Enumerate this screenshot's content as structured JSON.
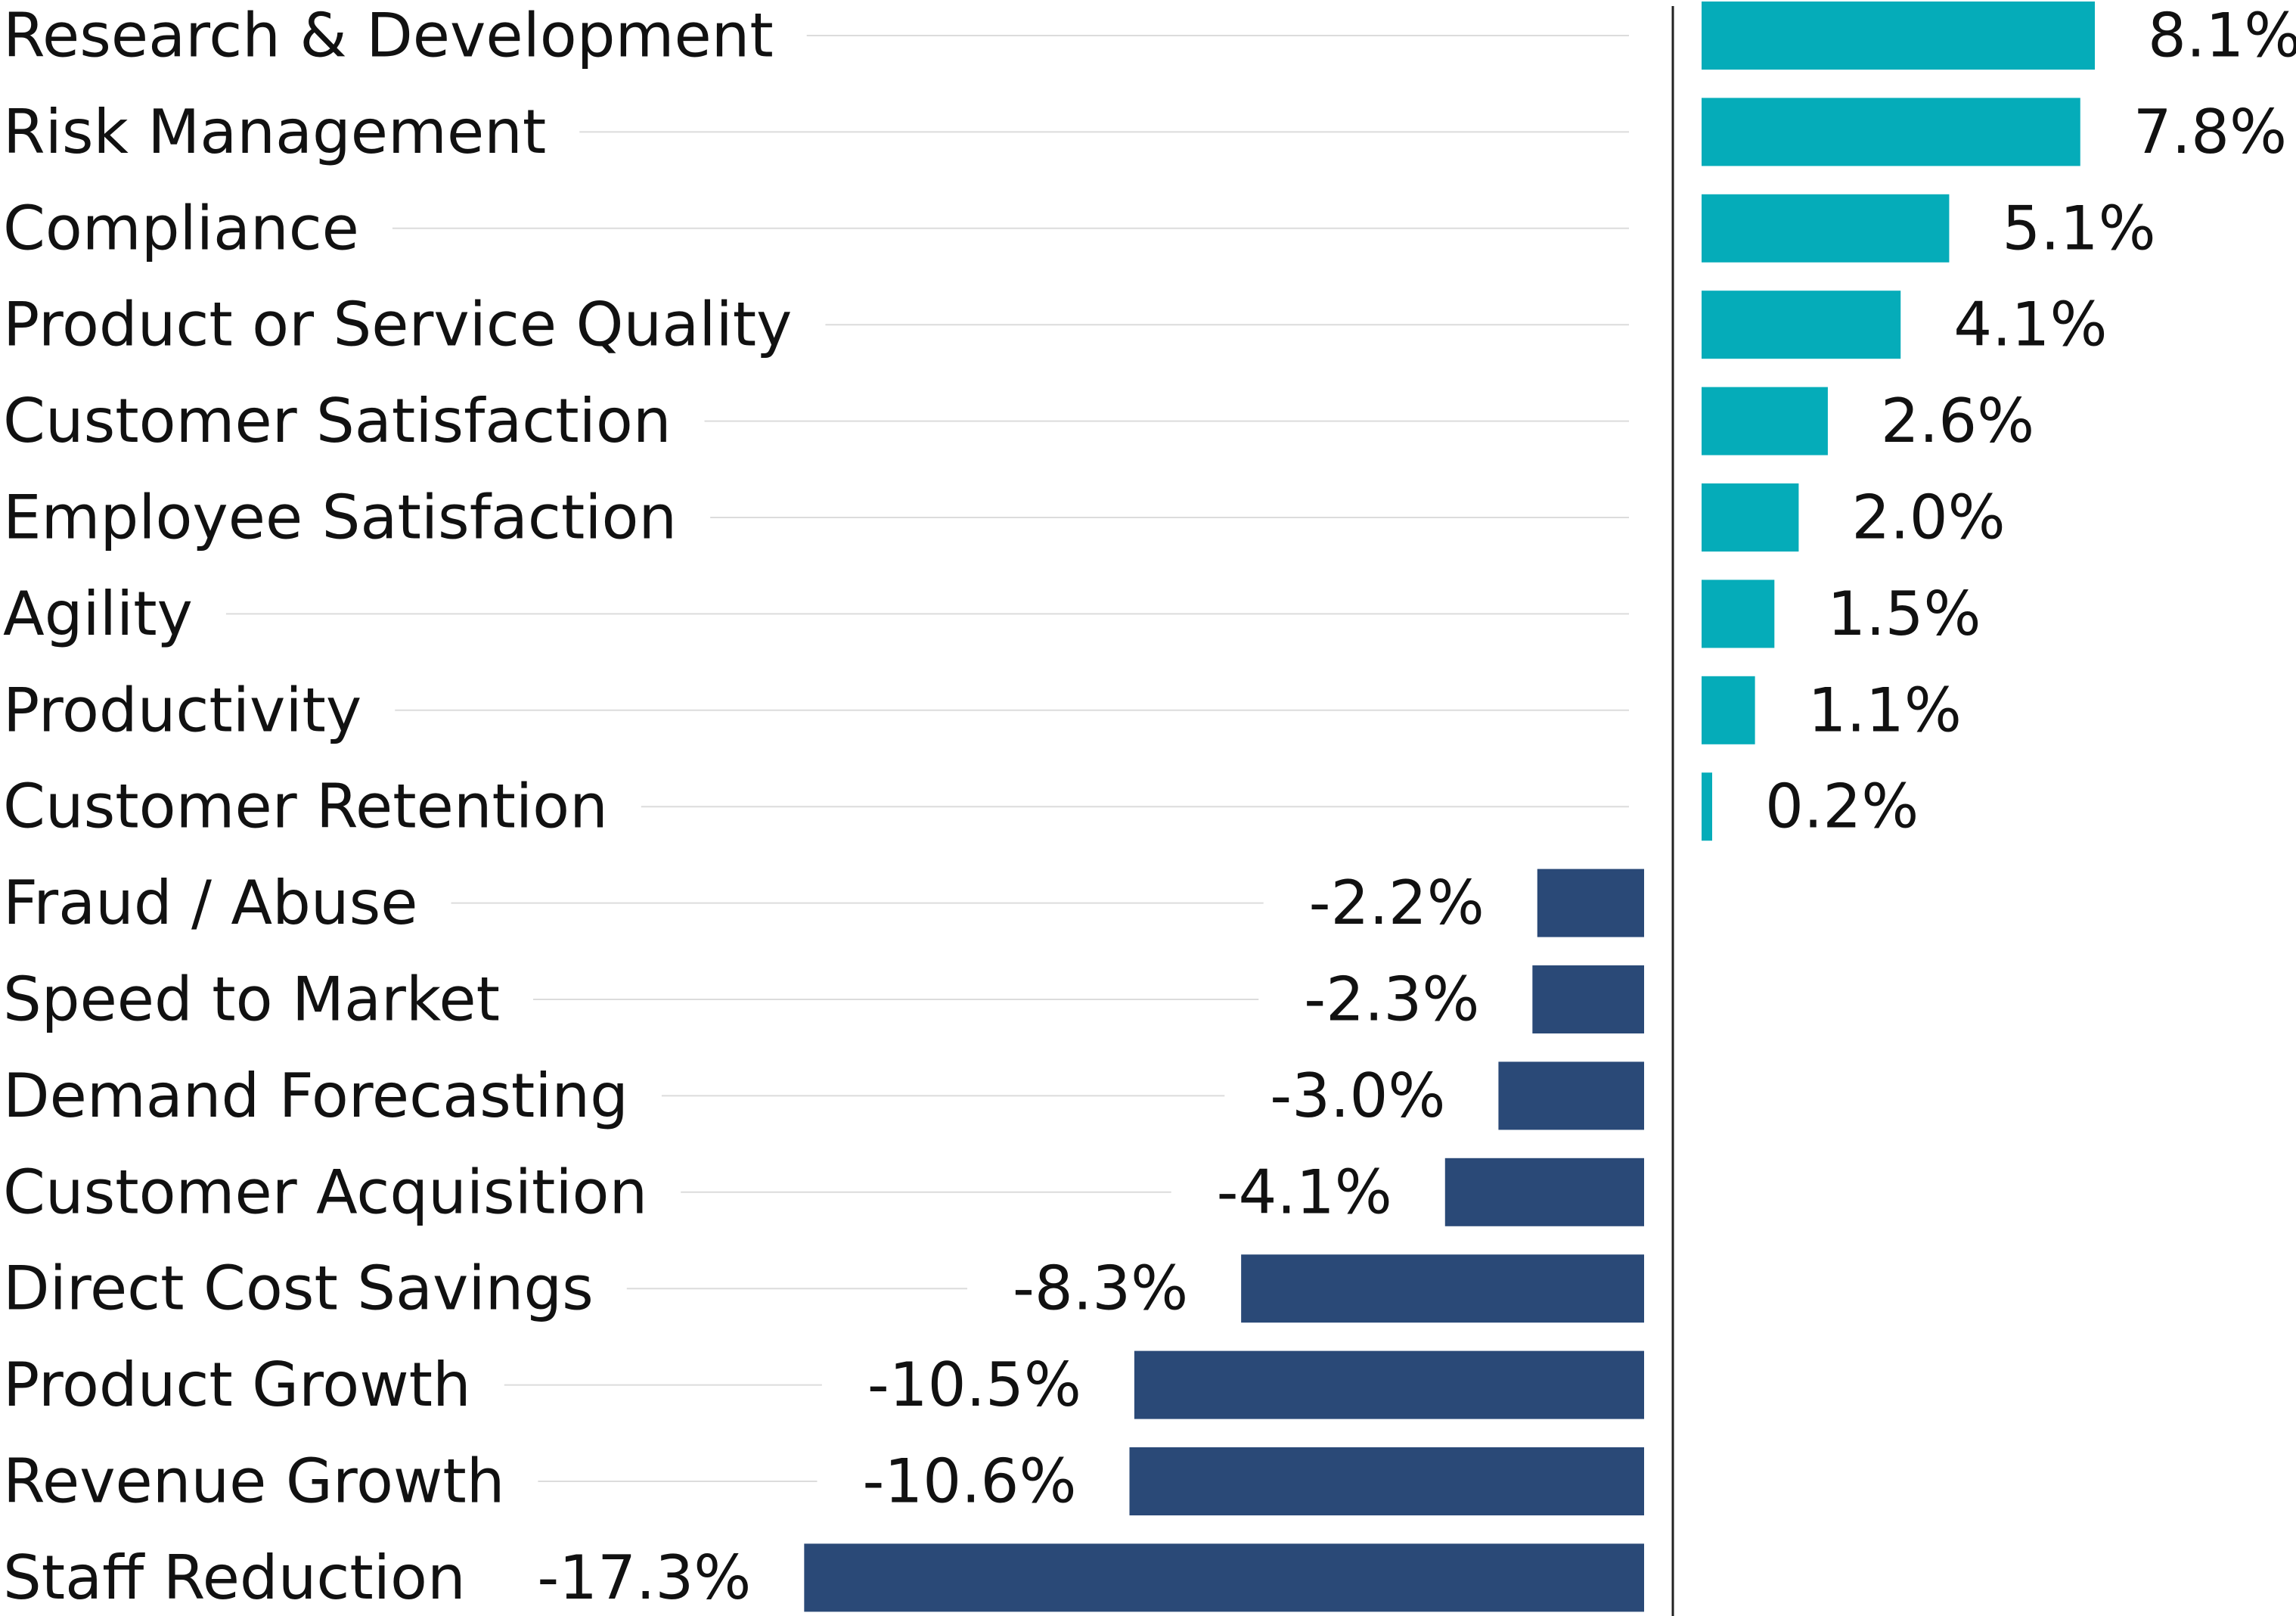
{
  "chart_data": {
    "type": "bar",
    "orientation": "horizontal",
    "categories": [
      "Research & Development",
      "Risk Management",
      "Compliance",
      "Product or Service Quality",
      "Customer Satisfaction",
      "Employee Satisfaction",
      "Agility",
      "Productivity",
      "Customer Retention",
      "Fraud / Abuse",
      "Speed to Market",
      "Demand Forecasting",
      "Customer Acquisition",
      "Direct Cost Savings",
      "Product Growth",
      "Revenue Growth",
      "Staff Reduction"
    ],
    "values": [
      8.1,
      7.8,
      5.1,
      4.1,
      2.6,
      2.0,
      1.5,
      1.1,
      0.2,
      -2.2,
      -2.3,
      -3.0,
      -4.1,
      -8.3,
      -10.5,
      -10.6,
      -17.3
    ],
    "value_labels": [
      "8.1%",
      "7.8%",
      "5.1%",
      "4.1%",
      "2.6%",
      "2.0%",
      "1.5%",
      "1.1%",
      "0.2%",
      "-2.2%",
      "-2.3%",
      "-3.0%",
      "-4.1%",
      "-8.3%",
      "-10.5%",
      "-10.6%",
      "-17.3%"
    ],
    "title": "",
    "xlabel": "",
    "ylabel": "",
    "xlim": [
      -17.3,
      8.1
    ],
    "grid": false,
    "legend": "none",
    "colors": {
      "positive": "#05acb9",
      "negative": "#2a4977",
      "zero_line": "#222222",
      "leader_line": "#dcdcdc",
      "text": "#111111"
    }
  }
}
